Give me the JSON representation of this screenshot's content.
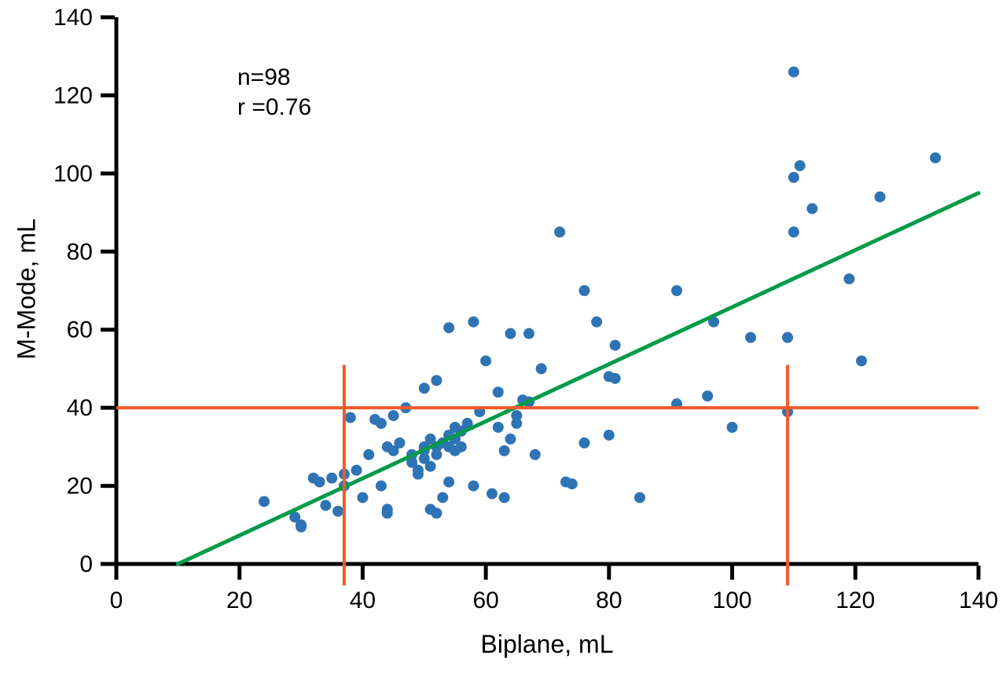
{
  "chart_data": {
    "type": "scatter",
    "title": "",
    "xlabel": "Biplane, mL",
    "ylabel": "M-Mode, mL",
    "xlim": [
      0,
      140
    ],
    "ylim": [
      0,
      140
    ],
    "xticks": [
      0,
      20,
      40,
      60,
      80,
      100,
      120,
      140
    ],
    "yticks": [
      0,
      20,
      40,
      60,
      80,
      100,
      120,
      140
    ],
    "grid": false,
    "legend": "none",
    "annotation": {
      "n": "n=98",
      "r": "r =0.76"
    },
    "point_color": "#2e74b5",
    "points": [
      [
        24,
        16
      ],
      [
        29,
        12
      ],
      [
        30,
        10
      ],
      [
        30,
        9.5
      ],
      [
        32,
        22
      ],
      [
        33,
        21
      ],
      [
        34,
        15
      ],
      [
        35,
        22
      ],
      [
        36,
        13.5
      ],
      [
        37,
        23
      ],
      [
        37,
        20
      ],
      [
        38,
        37.5
      ],
      [
        39,
        24
      ],
      [
        40,
        17
      ],
      [
        41,
        28
      ],
      [
        42,
        37
      ],
      [
        43,
        36
      ],
      [
        43,
        20
      ],
      [
        44,
        14
      ],
      [
        44,
        13
      ],
      [
        44,
        30
      ],
      [
        45,
        38
      ],
      [
        45,
        29
      ],
      [
        46,
        31
      ],
      [
        47,
        40
      ],
      [
        48,
        28
      ],
      [
        48,
        26
      ],
      [
        49,
        24
      ],
      [
        49,
        23
      ],
      [
        50,
        45
      ],
      [
        50,
        30
      ],
      [
        50,
        29
      ],
      [
        50,
        27
      ],
      [
        51,
        25
      ],
      [
        51,
        32
      ],
      [
        51,
        14
      ],
      [
        52,
        13
      ],
      [
        52,
        28
      ],
      [
        52,
        30
      ],
      [
        52,
        47
      ],
      [
        53,
        31
      ],
      [
        53,
        17
      ],
      [
        54,
        60.5
      ],
      [
        54,
        33
      ],
      [
        54,
        30
      ],
      [
        54,
        21
      ],
      [
        55,
        35
      ],
      [
        55,
        32
      ],
      [
        55,
        29
      ],
      [
        56,
        34
      ],
      [
        56,
        30
      ],
      [
        57,
        36
      ],
      [
        58,
        62
      ],
      [
        58,
        20
      ],
      [
        59,
        39
      ],
      [
        60,
        52
      ],
      [
        61,
        18
      ],
      [
        62,
        44
      ],
      [
        62,
        35
      ],
      [
        63,
        29
      ],
      [
        63,
        17
      ],
      [
        64,
        59
      ],
      [
        64,
        32
      ],
      [
        65,
        38
      ],
      [
        65,
        36
      ],
      [
        66,
        42
      ],
      [
        67,
        41.5
      ],
      [
        67,
        59
      ],
      [
        68,
        28
      ],
      [
        69,
        50
      ],
      [
        72,
        85
      ],
      [
        73,
        21
      ],
      [
        74,
        20.5
      ],
      [
        76,
        70
      ],
      [
        76,
        31
      ],
      [
        78,
        62
      ],
      [
        80,
        48
      ],
      [
        80,
        33
      ],
      [
        81,
        56
      ],
      [
        81,
        47.5
      ],
      [
        85,
        17
      ],
      [
        91,
        70
      ],
      [
        91,
        41
      ],
      [
        96,
        43
      ],
      [
        97,
        62
      ],
      [
        100,
        35
      ],
      [
        103,
        58
      ],
      [
        109,
        39
      ],
      [
        109,
        58
      ],
      [
        110,
        126
      ],
      [
        110,
        99
      ],
      [
        110,
        85
      ],
      [
        111,
        102
      ],
      [
        113,
        91
      ],
      [
        119,
        73
      ],
      [
        121,
        52
      ],
      [
        124,
        94
      ],
      [
        133,
        104
      ]
    ],
    "regression_line": {
      "x1": 10,
      "y1": 0,
      "x2": 140,
      "y2": 95,
      "color": "#009b48"
    },
    "reference_lines": {
      "color": "#f15a29",
      "horizontal": {
        "y": 40,
        "x1": 0,
        "x2": 140
      },
      "verticals": [
        {
          "x": 37,
          "y1": -5.5,
          "y2": 51
        },
        {
          "x": 109,
          "y1": -5.5,
          "y2": 51
        }
      ]
    }
  }
}
